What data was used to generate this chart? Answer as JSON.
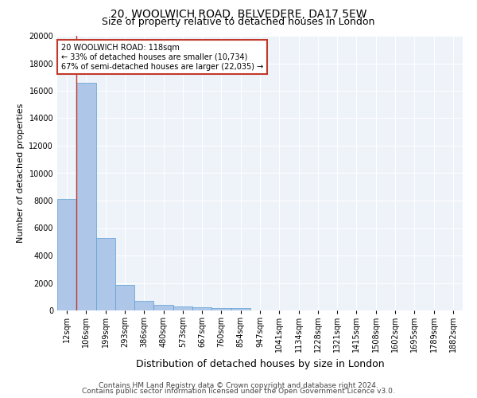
{
  "title1": "20, WOOLWICH ROAD, BELVEDERE, DA17 5EW",
  "title2": "Size of property relative to detached houses in London",
  "xlabel": "Distribution of detached houses by size in London",
  "ylabel": "Number of detached properties",
  "categories": [
    "12sqm",
    "106sqm",
    "199sqm",
    "293sqm",
    "386sqm",
    "480sqm",
    "573sqm",
    "667sqm",
    "760sqm",
    "854sqm",
    "947sqm",
    "1041sqm",
    "1134sqm",
    "1228sqm",
    "1321sqm",
    "1415sqm",
    "1508sqm",
    "1602sqm",
    "1695sqm",
    "1789sqm",
    "1882sqm"
  ],
  "values": [
    8100,
    16600,
    5300,
    1850,
    700,
    380,
    280,
    220,
    180,
    150,
    0,
    0,
    0,
    0,
    0,
    0,
    0,
    0,
    0,
    0,
    0
  ],
  "bar_color": "#aec6e8",
  "bar_edge_color": "#5a9fd4",
  "vline_color": "#c0392b",
  "annotation_text": "20 WOOLWICH ROAD: 118sqm\n← 33% of detached houses are smaller (10,734)\n67% of semi-detached houses are larger (22,035) →",
  "annotation_box_color": "#ffffff",
  "annotation_box_edge": "#c0392b",
  "ylim": [
    0,
    20000
  ],
  "yticks": [
    0,
    2000,
    4000,
    6000,
    8000,
    10000,
    12000,
    14000,
    16000,
    18000,
    20000
  ],
  "background_color": "#eef2f9",
  "footer1": "Contains HM Land Registry data © Crown copyright and database right 2024.",
  "footer2": "Contains public sector information licensed under the Open Government Licence v3.0.",
  "title1_fontsize": 10,
  "title2_fontsize": 9,
  "xlabel_fontsize": 9,
  "ylabel_fontsize": 8,
  "tick_fontsize": 7,
  "footer_fontsize": 6.5
}
